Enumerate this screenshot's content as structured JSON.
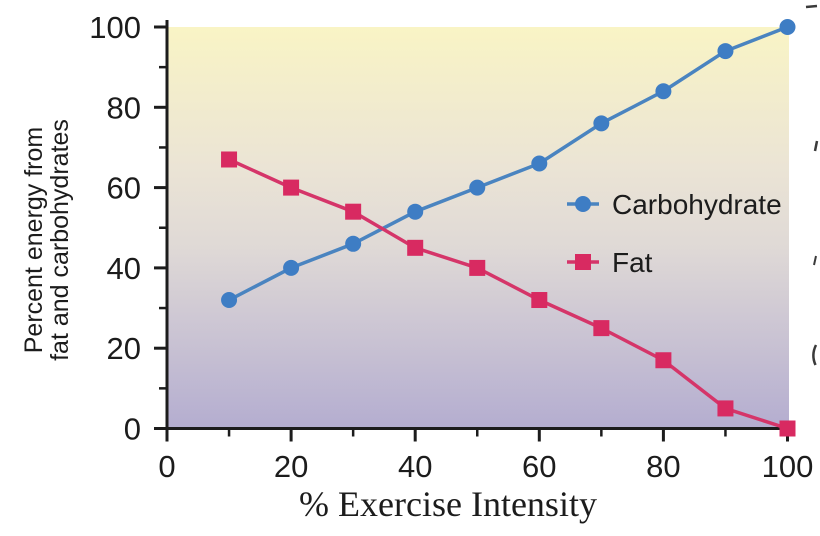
{
  "chart_data": {
    "type": "line",
    "title": "",
    "xlabel": "% Exercise Intensity",
    "ylabel": "Percent energy from fat and carbohydrates",
    "ylabel_lines": [
      "Percent energy from",
      "fat and carbohydrates"
    ],
    "x": [
      10,
      20,
      30,
      40,
      50,
      60,
      70,
      80,
      90,
      100
    ],
    "series": [
      {
        "name": "Carbohydrate",
        "marker": "circle",
        "marker_color": "#3e7dc4",
        "line_color": "#4a84c0",
        "values": [
          32,
          40,
          46,
          54,
          60,
          66,
          76,
          84,
          94,
          100
        ]
      },
      {
        "name": "Fat",
        "marker": "square",
        "marker_color": "#d82a61",
        "line_color": "#d53569",
        "values": [
          67,
          60,
          54,
          45,
          40,
          32,
          25,
          17,
          5,
          0
        ]
      }
    ],
    "xlim": [
      0,
      100
    ],
    "ylim": [
      0,
      100
    ],
    "x_major_ticks": [
      0,
      20,
      40,
      60,
      80,
      100
    ],
    "x_minor_ticks": [
      10,
      30,
      50,
      70,
      90
    ],
    "y_major_ticks": [
      0,
      20,
      40,
      60,
      80,
      100
    ],
    "y_minor_ticks": [
      10,
      30,
      50,
      70,
      90
    ],
    "grid": false,
    "legend": {
      "position": "inside-middle-right",
      "entries": [
        "Carbohydrate",
        "Fat"
      ]
    },
    "plot_background_gradient": {
      "direction": "top-to-bottom",
      "stops": [
        {
          "offset": 0,
          "color": "#f9f4c5"
        },
        {
          "offset": 0.35,
          "color": "#ebe4d5"
        },
        {
          "offset": 0.55,
          "color": "#dfd9d6"
        },
        {
          "offset": 1,
          "color": "#b4add0"
        }
      ]
    },
    "axis_color": "#1c1c1c",
    "text_color": "#1c1c1c"
  }
}
